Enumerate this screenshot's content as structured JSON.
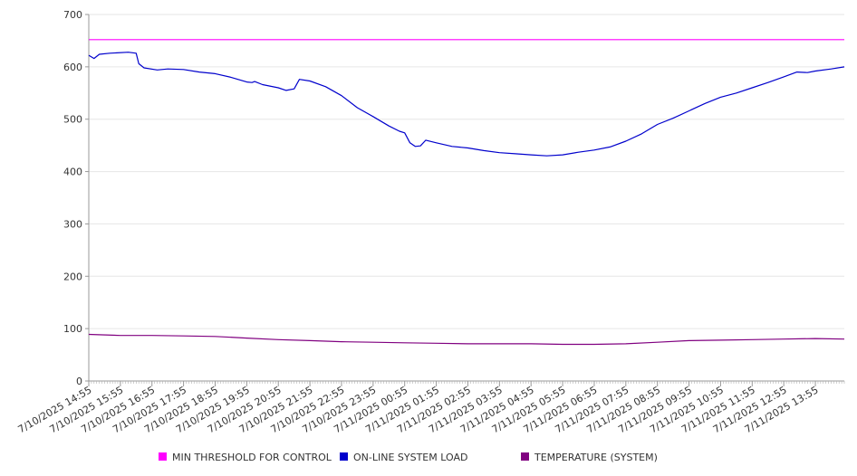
{
  "chart_data": {
    "type": "line",
    "title": "",
    "xlabel": "",
    "ylabel": "",
    "ylim": [
      0,
      700
    ],
    "y_ticks": [
      "0",
      "100",
      "200",
      "300",
      "400",
      "500",
      "600",
      "700"
    ],
    "x_ticks": [
      "7/10/2025 14:55",
      "7/10/2025 15:55",
      "7/10/2025 16:55",
      "7/10/2025 17:55",
      "7/10/2025 18:55",
      "7/10/2025 19:55",
      "7/10/2025 20:55",
      "7/10/2025 21:55",
      "7/10/2025 22:55",
      "7/10/2025 23:55",
      "7/11/2025 00:55",
      "7/11/2025 01:55",
      "7/11/2025 02:55",
      "7/11/2025 03:55",
      "7/11/2025 04:55",
      "7/11/2025 05:55",
      "7/11/2025 06:55",
      "7/11/2025 07:55",
      "7/11/2025 08:55",
      "7/11/2025 09:55",
      "7/11/2025 10:55",
      "7/11/2025 11:55",
      "7/11/2025 12:55",
      "7/11/2025 13:55"
    ],
    "x_end": "7/11/2025 14:50",
    "grid": "horizontal",
    "legend_position": "bottom",
    "series": [
      {
        "name": "MIN THRESHOLD FOR CONTROL",
        "color": "#ff00ff",
        "points": [
          [
            "7/10/2025 14:55",
            652
          ],
          [
            "7/11/2025 14:50",
            652
          ]
        ]
      },
      {
        "name": "ON-LINE SYSTEM LOAD",
        "color": "#0000cc",
        "points": [
          [
            "7/10/2025 14:55",
            622
          ],
          [
            "7/10/2025 15:05",
            616
          ],
          [
            "7/10/2025 15:15",
            624
          ],
          [
            "7/10/2025 15:35",
            626
          ],
          [
            "7/10/2025 16:10",
            628
          ],
          [
            "7/10/2025 16:25",
            626
          ],
          [
            "7/10/2025 16:30",
            606
          ],
          [
            "7/10/2025 16:40",
            598
          ],
          [
            "7/10/2025 17:05",
            594
          ],
          [
            "7/10/2025 17:25",
            596
          ],
          [
            "7/10/2025 17:55",
            595
          ],
          [
            "7/10/2025 18:25",
            590
          ],
          [
            "7/10/2025 18:55",
            587
          ],
          [
            "7/10/2025 19:25",
            580
          ],
          [
            "7/10/2025 19:55",
            571
          ],
          [
            "7/10/2025 20:05",
            570
          ],
          [
            "7/10/2025 20:10",
            572
          ],
          [
            "7/10/2025 20:25",
            566
          ],
          [
            "7/10/2025 20:55",
            560
          ],
          [
            "7/10/2025 21:10",
            555
          ],
          [
            "7/10/2025 21:25",
            558
          ],
          [
            "7/10/2025 21:35",
            576
          ],
          [
            "7/10/2025 21:55",
            573
          ],
          [
            "7/10/2025 22:25",
            562
          ],
          [
            "7/10/2025 22:55",
            545
          ],
          [
            "7/10/2025 23:25",
            522
          ],
          [
            "7/10/2025 23:55",
            505
          ],
          [
            "7/11/2025 00:25",
            487
          ],
          [
            "7/11/2025 00:45",
            477
          ],
          [
            "7/11/2025 00:55",
            474
          ],
          [
            "7/11/2025 01:05",
            455
          ],
          [
            "7/11/2025 01:15",
            448
          ],
          [
            "7/11/2025 01:25",
            449
          ],
          [
            "7/11/2025 01:35",
            460
          ],
          [
            "7/11/2025 01:55",
            455
          ],
          [
            "7/11/2025 02:25",
            448
          ],
          [
            "7/11/2025 02:55",
            445
          ],
          [
            "7/11/2025 03:25",
            440
          ],
          [
            "7/11/2025 03:55",
            436
          ],
          [
            "7/11/2025 04:25",
            434
          ],
          [
            "7/11/2025 04:55",
            432
          ],
          [
            "7/11/2025 05:25",
            430
          ],
          [
            "7/11/2025 05:55",
            432
          ],
          [
            "7/11/2025 06:25",
            437
          ],
          [
            "7/11/2025 06:55",
            441
          ],
          [
            "7/11/2025 07:25",
            447
          ],
          [
            "7/11/2025 07:55",
            458
          ],
          [
            "7/11/2025 08:25",
            472
          ],
          [
            "7/11/2025 08:55",
            490
          ],
          [
            "7/11/2025 09:25",
            502
          ],
          [
            "7/11/2025 09:55",
            516
          ],
          [
            "7/11/2025 10:25",
            530
          ],
          [
            "7/11/2025 10:55",
            542
          ],
          [
            "7/11/2025 11:25",
            550
          ],
          [
            "7/11/2025 11:55",
            560
          ],
          [
            "7/11/2025 12:25",
            570
          ],
          [
            "7/11/2025 12:55",
            581
          ],
          [
            "7/11/2025 13:20",
            590
          ],
          [
            "7/11/2025 13:40",
            589
          ],
          [
            "7/11/2025 13:55",
            592
          ],
          [
            "7/11/2025 14:25",
            596
          ],
          [
            "7/11/2025 14:50",
            600
          ]
        ]
      },
      {
        "name": "TEMPERATURE (SYSTEM)",
        "color": "#800080",
        "points": [
          [
            "7/10/2025 14:55",
            89
          ],
          [
            "7/10/2025 15:55",
            87
          ],
          [
            "7/10/2025 16:55",
            87
          ],
          [
            "7/10/2025 17:55",
            86
          ],
          [
            "7/10/2025 18:55",
            85
          ],
          [
            "7/10/2025 19:55",
            82
          ],
          [
            "7/10/2025 20:55",
            79
          ],
          [
            "7/10/2025 21:55",
            77
          ],
          [
            "7/10/2025 22:55",
            75
          ],
          [
            "7/10/2025 23:55",
            74
          ],
          [
            "7/11/2025 00:55",
            73
          ],
          [
            "7/11/2025 01:55",
            72
          ],
          [
            "7/11/2025 02:55",
            71
          ],
          [
            "7/11/2025 03:55",
            71
          ],
          [
            "7/11/2025 04:55",
            71
          ],
          [
            "7/11/2025 05:55",
            70
          ],
          [
            "7/11/2025 06:55",
            70
          ],
          [
            "7/11/2025 07:55",
            71
          ],
          [
            "7/11/2025 08:55",
            74
          ],
          [
            "7/11/2025 09:55",
            77
          ],
          [
            "7/11/2025 10:55",
            78
          ],
          [
            "7/11/2025 11:55",
            79
          ],
          [
            "7/11/2025 12:55",
            80
          ],
          [
            "7/11/2025 13:55",
            81
          ],
          [
            "7/11/2025 14:50",
            80
          ]
        ]
      }
    ]
  }
}
